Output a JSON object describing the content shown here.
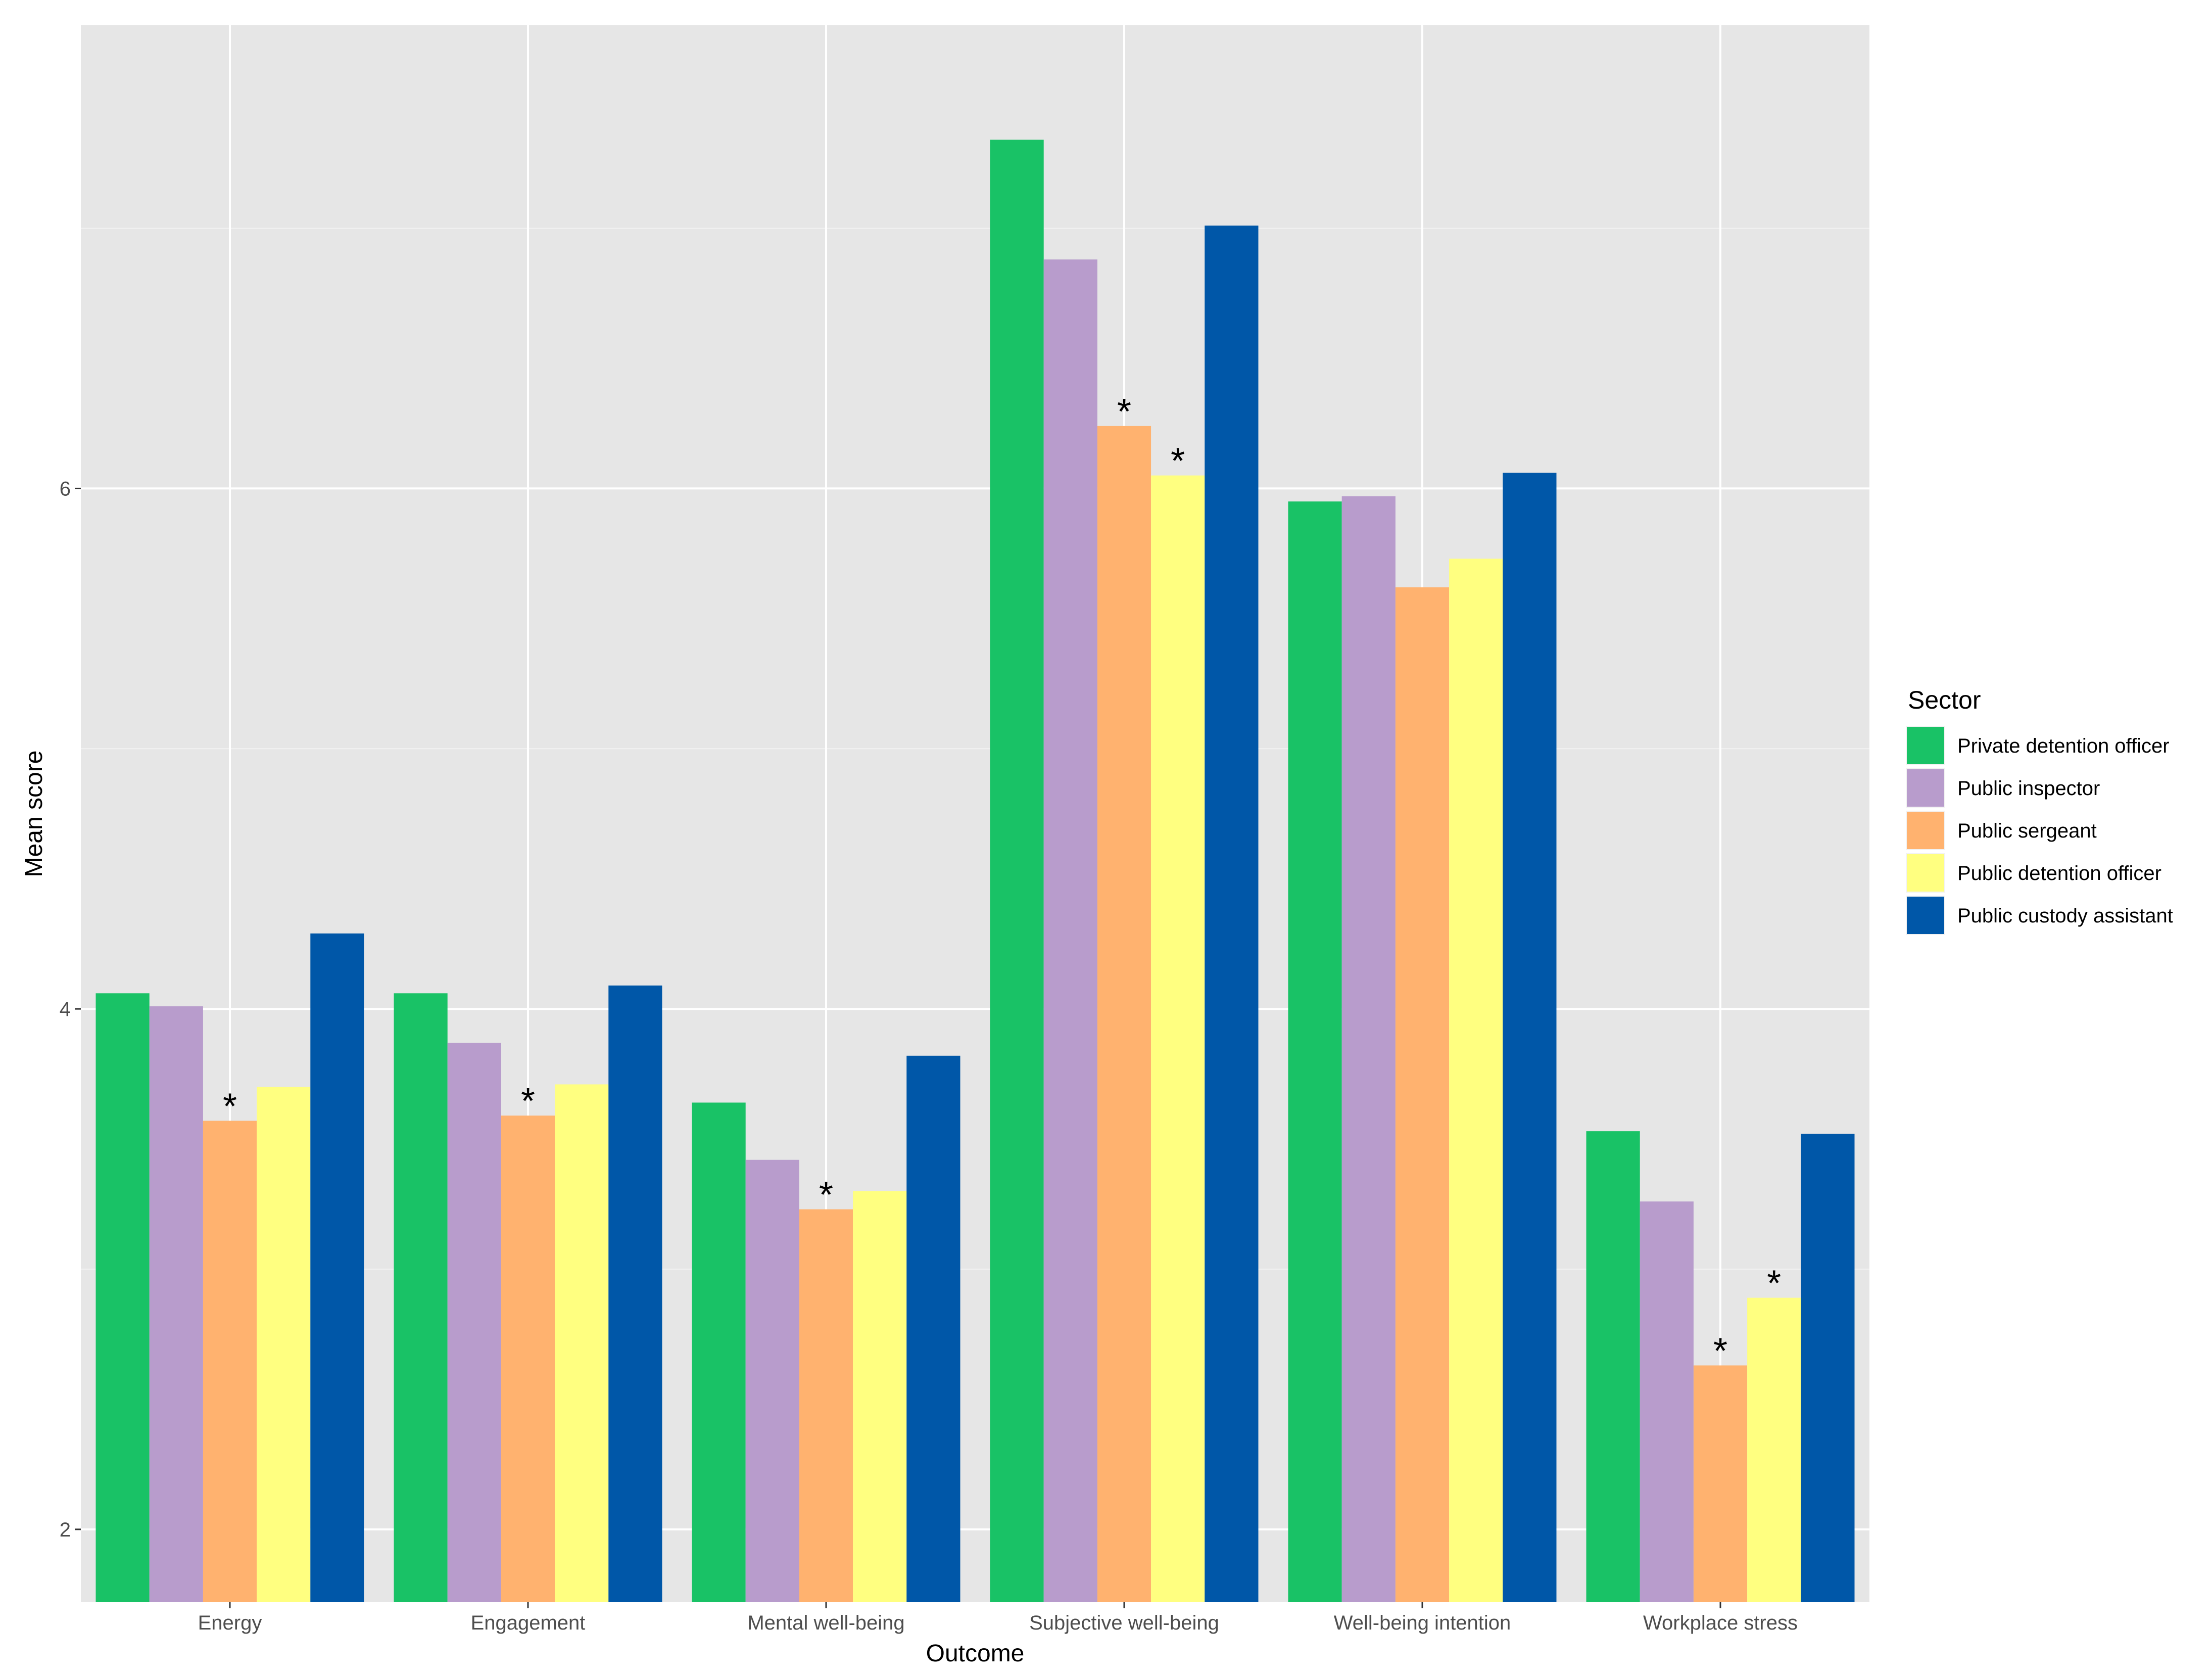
{
  "chart_data": {
    "type": "bar",
    "xlabel": "Outcome",
    "ylabel": "Mean score",
    "ylim": [
      1.72,
      7.78
    ],
    "yticks": [
      2,
      4,
      6
    ],
    "grid": true,
    "legend_position": "right",
    "legend_title": "Sector",
    "categories": [
      "Energy",
      "Engagement",
      "Mental well-being",
      "Subjective well-being",
      "Well-being intention",
      "Workplace stress"
    ],
    "series": [
      {
        "name": "Private detention officer",
        "color": "#19c266",
        "values": [
          4.06,
          4.06,
          3.64,
          7.34,
          5.95,
          3.53
        ]
      },
      {
        "name": "Public inspector",
        "color": "#b89ccc",
        "values": [
          4.01,
          3.87,
          3.42,
          6.88,
          5.97,
          3.26
        ]
      },
      {
        "name": "Public sergeant",
        "color": "#ffb26f",
        "values": [
          3.57,
          3.59,
          3.23,
          6.24,
          5.62,
          2.63
        ]
      },
      {
        "name": "Public detention officer",
        "color": "#ffff80",
        "values": [
          3.7,
          3.71,
          3.3,
          6.05,
          5.73,
          2.89
        ]
      },
      {
        "name": "Public custody assistant",
        "color": "#0057a8",
        "values": [
          4.29,
          4.09,
          3.82,
          7.01,
          6.06,
          3.52
        ]
      }
    ],
    "annotations": [
      {
        "text": "*",
        "category": "Energy",
        "series": "Public sergeant"
      },
      {
        "text": "*",
        "category": "Engagement",
        "series": "Public sergeant"
      },
      {
        "text": "*",
        "category": "Mental well-being",
        "series": "Public sergeant"
      },
      {
        "text": "*",
        "category": "Subjective well-being",
        "series": "Public sergeant"
      },
      {
        "text": "*",
        "category": "Subjective well-being",
        "series": "Public detention officer"
      },
      {
        "text": "*",
        "category": "Workplace stress",
        "series": "Public sergeant"
      },
      {
        "text": "*",
        "category": "Workplace stress",
        "series": "Public detention officer"
      }
    ]
  }
}
